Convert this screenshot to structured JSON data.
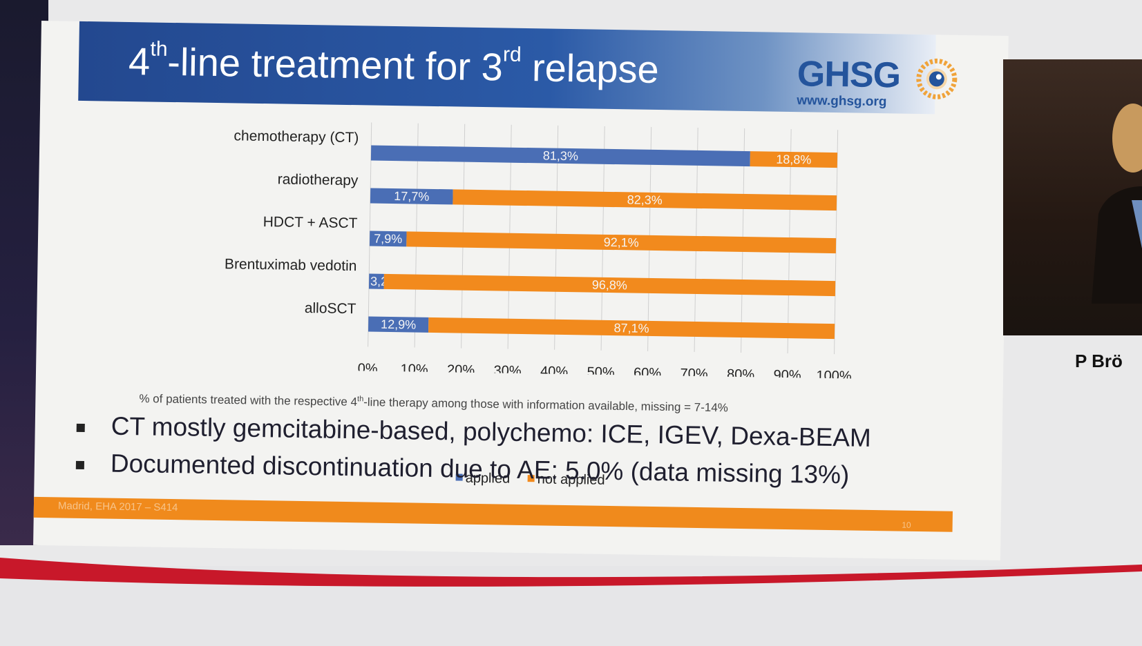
{
  "slide": {
    "title_main": "4",
    "title_sup1": "th",
    "title_mid": "-line treatment for 3",
    "title_sup2": "rd",
    "title_end": " relapse",
    "logo": {
      "name": "GHSG",
      "url": "www.ghsg.org"
    },
    "footnote_pre": "% of patients treated with the respective 4",
    "footnote_sup": "th",
    "footnote_post": "-line therapy among those with information available, missing = 7-14%",
    "bullets": [
      "CT mostly gemcitabine-based, polychemo: ICE, IGEV, Dexa-BEAM",
      "Documented discontinuation due to AE: 5.0% (data missing 13%)"
    ],
    "footer_text": "Madrid, EHA 2017 – S414",
    "page_number": "10"
  },
  "speaker": {
    "name": "P Brö"
  },
  "colors": {
    "applied": "#4a6eb5",
    "not_applied": "#f28a1d",
    "title_bar": "#23488f"
  },
  "chart_data": {
    "type": "bar",
    "orientation": "horizontal",
    "stacked": true,
    "categories": [
      "chemotherapy (CT)",
      "radiotherapy",
      "HDCT + ASCT",
      "Brentuximab vedotin",
      "alloSCT"
    ],
    "series": [
      {
        "name": "applied",
        "values": [
          81.3,
          17.7,
          7.9,
          3.2,
          12.9
        ],
        "labels": [
          "81,3%",
          "17,7%",
          "7,9%",
          "3,2%",
          "12,9%"
        ]
      },
      {
        "name": "not applied",
        "values": [
          18.8,
          82.3,
          92.1,
          96.8,
          87.1
        ],
        "labels": [
          "18,8%",
          "82,3%",
          "92,1%",
          "96,8%",
          "87,1%"
        ]
      }
    ],
    "x_ticks": [
      "0%",
      "10%",
      "20%",
      "30%",
      "40%",
      "50%",
      "60%",
      "70%",
      "80%",
      "90%",
      "100%"
    ],
    "xlim": [
      0,
      100
    ],
    "grid": true,
    "legend": "bottom"
  }
}
